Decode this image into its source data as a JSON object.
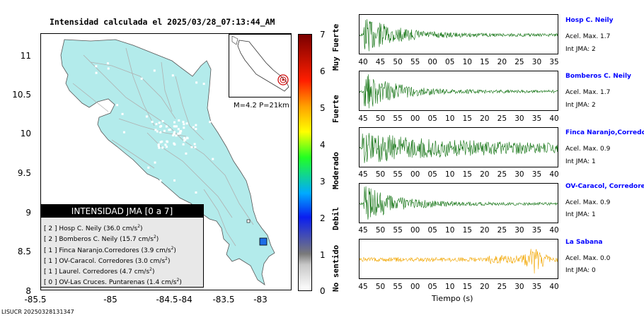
{
  "map": {
    "title": "Intensidad calculada el 2025/03/28_07:13:44_AM",
    "y_ticks": [
      "11",
      "10.5",
      "10",
      "9.5",
      "9",
      "8.5",
      "8"
    ],
    "x_ticks": [
      "-85.5",
      "-85",
      "-84.5",
      "-84",
      "-83.5",
      "-83"
    ],
    "inset_caption": "M=4.2 P=21km",
    "colors": {
      "land": "#b3ebeb",
      "roads": "#b0b0b0",
      "station": "#1e6ee6",
      "epicenter": "#d01010"
    }
  },
  "legend": {
    "title": "INTENSIDAD JMA [0 a 7]",
    "items": [
      {
        "jma": "[ 2 ]",
        "text": "Hosp C. Neily (36.0 cm/s",
        "exp": "2",
        "close": ")"
      },
      {
        "jma": "[ 2 ]",
        "text": "Bomberos C. Neily (15.7 cm/s",
        "exp": "2",
        "close": ")"
      },
      {
        "jma": "[ 1 ]",
        "text": "Finca Naranjo.Corredores (3.9 cm/s",
        "exp": "2",
        "close": ")"
      },
      {
        "jma": "[ 1 ]",
        "text": "OV-Caracol. Corredores (3.0 cm/s",
        "exp": "2",
        "close": ")"
      },
      {
        "jma": "[ 1 ]",
        "text": "Laurel. Corredores (4.7 cm/s",
        "exp": "2",
        "close": ")"
      },
      {
        "jma": "[ 0 ]",
        "text": "OV-Las Cruces. Puntarenas (1.4 cm/s",
        "exp": "2",
        "close": ")"
      }
    ]
  },
  "colorbar": {
    "ticks": [
      "7",
      "6",
      "5",
      "4",
      "3",
      "2",
      "1",
      "0"
    ],
    "labels": [
      "Muy Fuerte",
      "Fuerte",
      "Moderado",
      "Debil",
      "No sentido"
    ]
  },
  "waveforms": [
    {
      "name": "Hosp C. Neily",
      "accel": "Acel. Max. 1.7",
      "jma": "Int JMA: 2",
      "color": "#0a6e0a",
      "ticks": [
        "40",
        "45",
        "50",
        "55",
        "00",
        "05",
        "10",
        "15",
        "20",
        "25",
        "30",
        "35"
      ],
      "profile": "decay"
    },
    {
      "name": "Bomberos C. Neily",
      "accel": "Acel. Max. 1.7",
      "jma": "Int JMA: 2",
      "color": "#0a6e0a",
      "ticks": [
        "45",
        "50",
        "55",
        "00",
        "05",
        "10",
        "15",
        "20",
        "25",
        "30",
        "35",
        "40"
      ],
      "profile": "decay"
    },
    {
      "name": "Finca Naranjo,Corredores",
      "accel": "Acel. Max. 0.9",
      "jma": "Int JMA: 1",
      "color": "#0a6e0a",
      "ticks": [
        "45",
        "50",
        "55",
        "00",
        "05",
        "10",
        "15",
        "20",
        "25",
        "30",
        "35",
        "40"
      ],
      "profile": "sustained"
    },
    {
      "name": "OV-Caracol, Corredores",
      "accel": "Acel. Max. 0.9",
      "jma": "Int JMA: 1",
      "color": "#0a6e0a",
      "ticks": [
        "45",
        "50",
        "55",
        "00",
        "05",
        "10",
        "15",
        "20",
        "25",
        "30",
        "35",
        "40"
      ],
      "profile": "decay"
    },
    {
      "name": "La Sabana",
      "accel": "Acel. Max. 0.0",
      "jma": "Int JMA: 0",
      "color": "#f2a600",
      "ticks": [
        "45",
        "50",
        "55",
        "00",
        "05",
        "10",
        "15",
        "20",
        "25",
        "30",
        "35",
        "40"
      ],
      "profile": "noise"
    }
  ],
  "xlabel": "Tiempo (s)",
  "footer": "LISUCR 20250328131347"
}
